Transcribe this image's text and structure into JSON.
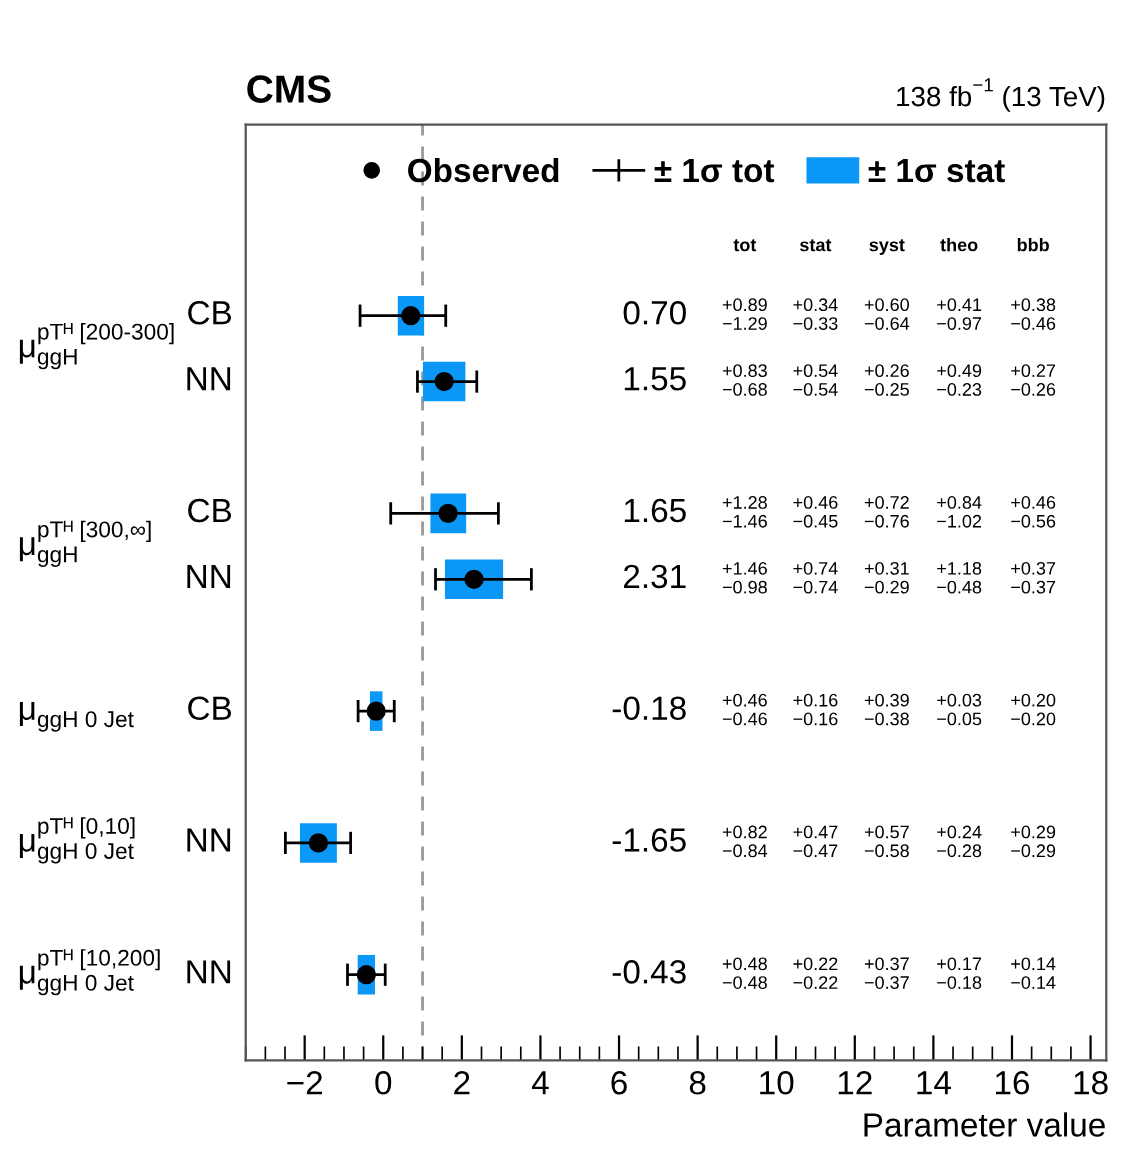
{
  "chart_data": {
    "type": "scatter",
    "orientation": "horizontal",
    "title": "CMS",
    "subtitle": "138 fb$^{−1}$ (13 TeV)",
    "xlabel": "Parameter value",
    "categories": [
      "CB",
      "NN",
      null,
      "CB",
      "NN",
      null,
      "CB",
      null,
      "NN",
      null,
      "NN"
    ],
    "series": [
      {
        "name": "± 1σ stat",
        "type": "bar",
        "color": "#0b97f5",
        "base": [
          0.37,
          1.01,
          null,
          1.2,
          1.57,
          null,
          -0.34,
          null,
          -2.12,
          null,
          -0.65
        ],
        "values": [
          0.67,
          1.08,
          null,
          0.91,
          1.48,
          null,
          0.32,
          null,
          0.94,
          null,
          0.44
        ]
      },
      {
        "name": "Observed",
        "color": "#000000",
        "marker": "circle",
        "values": [
          0.7,
          1.55,
          null,
          1.65,
          2.31,
          null,
          -0.18,
          null,
          -1.65,
          null,
          -0.43
        ],
        "errors": [
          [
            -0.59,
            1.59
          ],
          [
            0.87,
            2.38
          ],
          null,
          [
            0.19,
            2.93
          ],
          [
            1.33,
            3.77
          ],
          null,
          [
            -0.64,
            0.28
          ],
          null,
          [
            -2.49,
            -0.83
          ],
          null,
          [
            -0.91,
            0.05
          ]
        ]
      }
    ],
    "xlim": [
      -3.5,
      18.4
    ],
    "xticks": [
      {
        "value": -2,
        "label": "−2"
      },
      0,
      2,
      4,
      6,
      8,
      10,
      12,
      14,
      16,
      18
    ],
    "ref_lines": [
      {
        "axis": "x",
        "value": 1,
        "color": "#999999",
        "line_style": "dashed"
      }
    ],
    "legend": "top",
    "grid": false,
    "annotations": [
      "± 1σ tot",
      "μ$^{pTᴴ [200-300]}$$_{ggH}$",
      "μ$^{pTᴴ [300,∞]}$$_{ggH}$",
      "μ$_{ggH 0 Jet}$",
      "μ$^{pTᴴ [0,10]}$$_{ggH 0 Jet}$",
      "μ$^{pTᴴ [10,200]}$$_{ggH 0 Jet}$",
      "tot",
      "stat",
      "syst",
      "theo",
      "bbb",
      "0.70",
      "1.55",
      "1.65",
      "2.31",
      "-0.18",
      "-1.65",
      "-0.43",
      "+0.89\n−1.29",
      "+0.34\n−0.33",
      "+0.60\n−0.64",
      "+0.41\n−0.97",
      "+0.38\n−0.46",
      "+0.83\n−0.68",
      "+0.54\n−0.54",
      "+0.26\n−0.25",
      "+0.49\n−0.23",
      "+0.27\n−0.26",
      "+1.28\n−1.46",
      "+0.46\n−0.45",
      "+0.72\n−0.76",
      "+0.84\n−1.02",
      "+0.46\n−0.56",
      "+1.46\n−0.98",
      "+0.74\n−0.74",
      "+0.31\n−0.29",
      "+1.18\n−0.48",
      "+0.37\n−0.37",
      "+0.46\n−0.46",
      "+0.16\n−0.16",
      "+0.39\n−0.38",
      "+0.03\n−0.05",
      "+0.20\n−0.20",
      "+0.82\n−0.84",
      "+0.47\n−0.47",
      "+0.57\n−0.58",
      "+0.24\n−0.28",
      "+0.29\n−0.29",
      "+0.48\n−0.48",
      "+0.22\n−0.22",
      "+0.37\n−0.37",
      "+0.17\n−0.18",
      "+0.14\n−0.14"
    ]
  }
}
